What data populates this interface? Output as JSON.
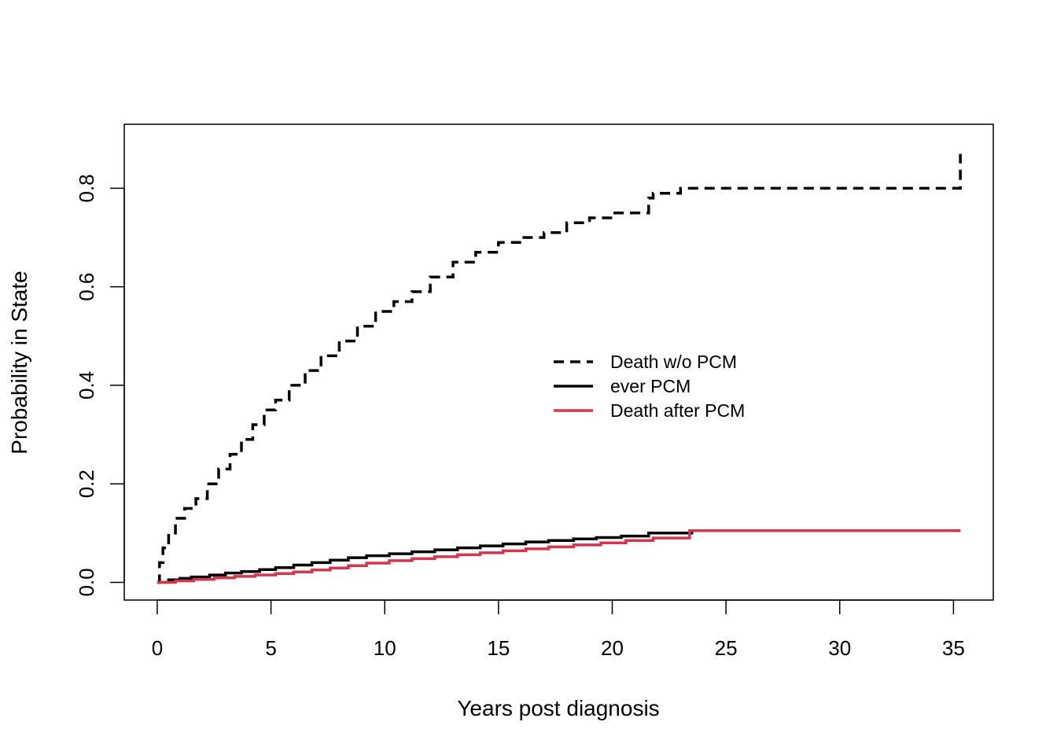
{
  "chart_data": {
    "type": "line",
    "title": "",
    "xlabel": "Years post diagnosis",
    "ylabel": "Probability in State",
    "xlim": [
      -1.45,
      36.75
    ],
    "ylim": [
      -0.036,
      0.93
    ],
    "xticks": [
      0,
      5,
      10,
      15,
      20,
      25,
      30,
      35
    ],
    "yticks": [
      0.0,
      0.2,
      0.4,
      0.6,
      0.8
    ],
    "xtick_labels": [
      "0",
      "5",
      "10",
      "15",
      "20",
      "25",
      "30",
      "35"
    ],
    "ytick_labels": [
      "0.0",
      "0.2",
      "0.4",
      "0.6",
      "0.8"
    ],
    "grid": false,
    "legend_position": "center-right",
    "step": true,
    "series": [
      {
        "name": "Death w/o PCM",
        "color": "#000000",
        "style": "dashed",
        "x": [
          0,
          0.1,
          0.25,
          0.5,
          0.8,
          1.2,
          1.7,
          2.2,
          2.7,
          3.2,
          3.7,
          4.2,
          4.7,
          5.2,
          5.8,
          6.5,
          7.2,
          8.0,
          8.8,
          9.6,
          10.4,
          11.2,
          12.0,
          13.0,
          14.0,
          15.0,
          16.0,
          17.0,
          18.0,
          19.0,
          20.0,
          21.3,
          21.6,
          21.8,
          23.0,
          35.3
        ],
        "y": [
          0,
          0.04,
          0.07,
          0.1,
          0.13,
          0.15,
          0.17,
          0.2,
          0.23,
          0.26,
          0.29,
          0.32,
          0.35,
          0.37,
          0.4,
          0.43,
          0.46,
          0.49,
          0.52,
          0.55,
          0.57,
          0.59,
          0.62,
          0.65,
          0.67,
          0.69,
          0.7,
          0.71,
          0.73,
          0.74,
          0.75,
          0.75,
          0.78,
          0.79,
          0.8,
          0.87
        ]
      },
      {
        "name": "ever PCM",
        "color": "#000000",
        "style": "solid",
        "x": [
          0,
          0.5,
          1.0,
          1.5,
          2.3,
          3.0,
          3.7,
          4.5,
          5.2,
          6.0,
          6.8,
          7.6,
          8.4,
          9.2,
          10.2,
          11.2,
          12.2,
          13.2,
          14.2,
          15.2,
          16.2,
          17.2,
          18.3,
          19.3,
          20.4,
          21.6,
          23.5,
          35.3
        ],
        "y": [
          0,
          0.005,
          0.008,
          0.011,
          0.015,
          0.019,
          0.022,
          0.026,
          0.03,
          0.035,
          0.04,
          0.045,
          0.05,
          0.054,
          0.058,
          0.062,
          0.066,
          0.07,
          0.074,
          0.078,
          0.082,
          0.085,
          0.088,
          0.091,
          0.094,
          0.1,
          0.105,
          0.105
        ]
      },
      {
        "name": "Death after PCM",
        "color": "#d5354d",
        "style": "solid",
        "x": [
          0,
          0.8,
          1.6,
          2.5,
          3.4,
          4.3,
          5.2,
          6.0,
          6.8,
          7.6,
          8.4,
          9.2,
          10.2,
          11.2,
          12.2,
          13.2,
          14.2,
          15.2,
          16.2,
          17.2,
          18.3,
          19.5,
          20.6,
          21.8,
          23.4,
          35.3
        ],
        "y": [
          0,
          0.003,
          0.006,
          0.009,
          0.012,
          0.015,
          0.018,
          0.021,
          0.025,
          0.029,
          0.034,
          0.039,
          0.044,
          0.048,
          0.052,
          0.056,
          0.06,
          0.064,
          0.068,
          0.072,
          0.076,
          0.08,
          0.085,
          0.09,
          0.105,
          0.105
        ]
      }
    ]
  }
}
